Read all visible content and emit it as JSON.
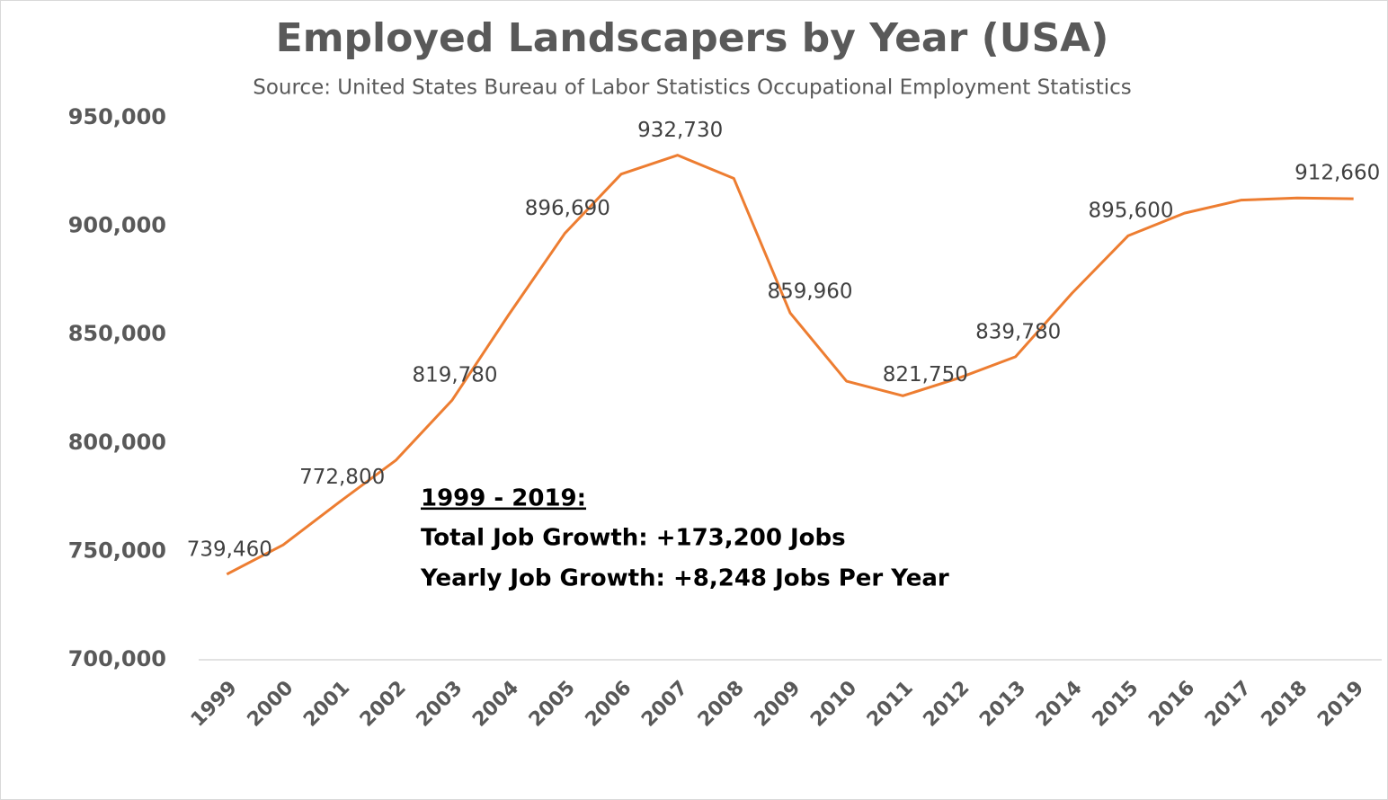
{
  "chart_data": {
    "type": "line",
    "title": "Employed Landscapers by Year (USA)",
    "subtitle": "Source: United States Bureau of Labor Statistics Occupational Employment Statistics",
    "categories": [
      "1999",
      "2000",
      "2001",
      "2002",
      "2003",
      "2004",
      "2005",
      "2006",
      "2007",
      "2008",
      "2009",
      "2010",
      "2011",
      "2012",
      "2013",
      "2014",
      "2015",
      "2016",
      "2017",
      "2018",
      "2019"
    ],
    "series": [
      {
        "color": "#ed7d31",
        "values": [
          739460,
          753000,
          772800,
          792000,
          819780,
          859000,
          896690,
          924000,
          932730,
          922000,
          859960,
          828500,
          821750,
          830000,
          839780,
          869000,
          895600,
          906000,
          912000,
          913000,
          912660
        ],
        "value_labels": [
          "739,460",
          null,
          "772,800",
          null,
          "819,780",
          null,
          "896,690",
          null,
          "932,730",
          null,
          "859,960",
          null,
          "821,750",
          null,
          "839,780",
          null,
          "895,600",
          null,
          null,
          null,
          "912,660"
        ]
      }
    ],
    "ylim": [
      700000,
      950000
    ],
    "yticks": [
      {
        "value": 700000,
        "label": "700,000"
      },
      {
        "value": 750000,
        "label": "750,000"
      },
      {
        "value": 800000,
        "label": "800,000"
      },
      {
        "value": 850000,
        "label": "850,000"
      },
      {
        "value": 900000,
        "label": "900,000"
      },
      {
        "value": 950000,
        "label": "950,000"
      }
    ],
    "grid": false,
    "annotations": [
      "1999 - 2019:",
      "Total Job Growth: +173,200 Jobs",
      "Yearly Job Growth: +8,248 Jobs Per Year"
    ]
  }
}
